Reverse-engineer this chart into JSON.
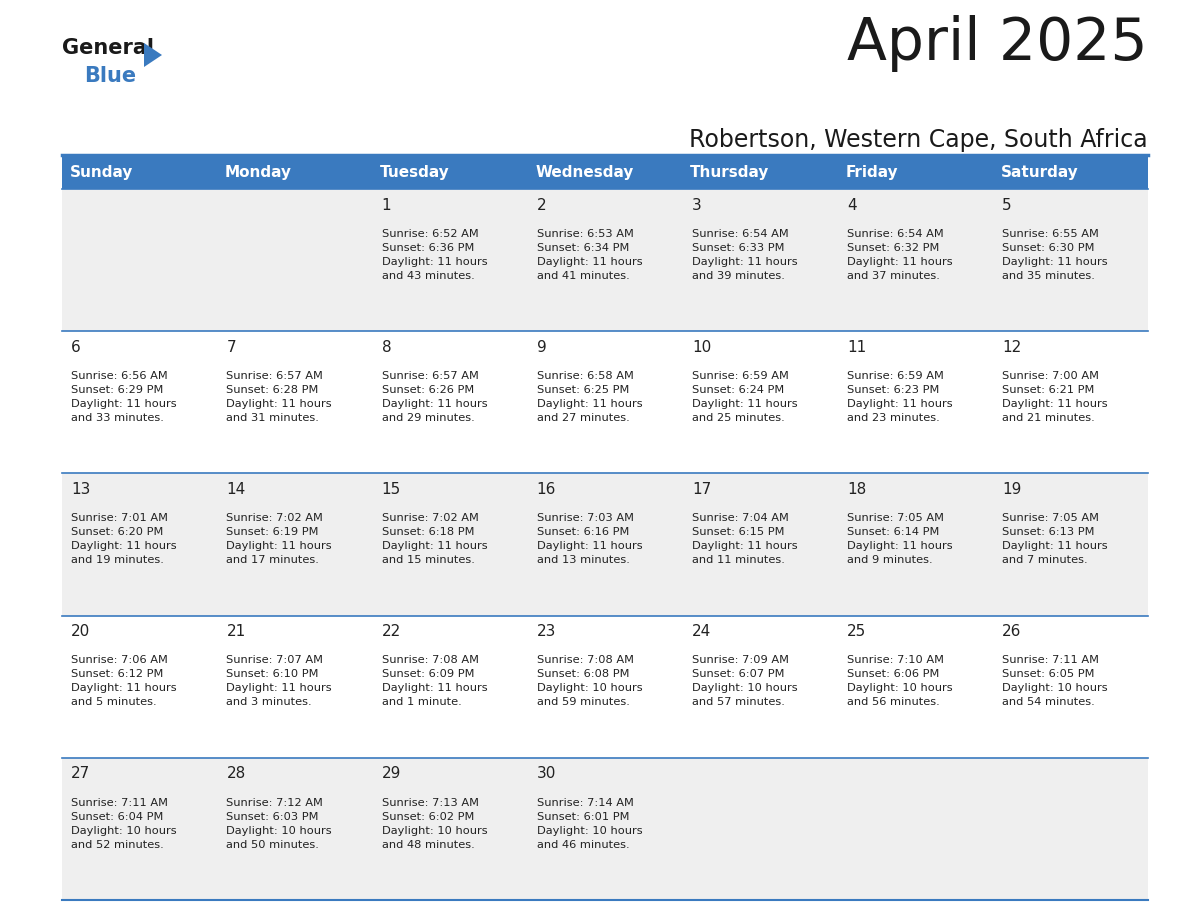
{
  "title": "April 2025",
  "subtitle": "Robertson, Western Cape, South Africa",
  "header_bg": "#3a7abf",
  "header_text_color": "#ffffff",
  "row_bg_odd": "#efefef",
  "row_bg_even": "#ffffff",
  "border_color": "#3a7abf",
  "text_color": "#222222",
  "days_of_week": [
    "Sunday",
    "Monday",
    "Tuesday",
    "Wednesday",
    "Thursday",
    "Friday",
    "Saturday"
  ],
  "weeks": [
    [
      {
        "day": null,
        "info": null
      },
      {
        "day": null,
        "info": null
      },
      {
        "day": 1,
        "info": "Sunrise: 6:52 AM\nSunset: 6:36 PM\nDaylight: 11 hours\nand 43 minutes."
      },
      {
        "day": 2,
        "info": "Sunrise: 6:53 AM\nSunset: 6:34 PM\nDaylight: 11 hours\nand 41 minutes."
      },
      {
        "day": 3,
        "info": "Sunrise: 6:54 AM\nSunset: 6:33 PM\nDaylight: 11 hours\nand 39 minutes."
      },
      {
        "day": 4,
        "info": "Sunrise: 6:54 AM\nSunset: 6:32 PM\nDaylight: 11 hours\nand 37 minutes."
      },
      {
        "day": 5,
        "info": "Sunrise: 6:55 AM\nSunset: 6:30 PM\nDaylight: 11 hours\nand 35 minutes."
      }
    ],
    [
      {
        "day": 6,
        "info": "Sunrise: 6:56 AM\nSunset: 6:29 PM\nDaylight: 11 hours\nand 33 minutes."
      },
      {
        "day": 7,
        "info": "Sunrise: 6:57 AM\nSunset: 6:28 PM\nDaylight: 11 hours\nand 31 minutes."
      },
      {
        "day": 8,
        "info": "Sunrise: 6:57 AM\nSunset: 6:26 PM\nDaylight: 11 hours\nand 29 minutes."
      },
      {
        "day": 9,
        "info": "Sunrise: 6:58 AM\nSunset: 6:25 PM\nDaylight: 11 hours\nand 27 minutes."
      },
      {
        "day": 10,
        "info": "Sunrise: 6:59 AM\nSunset: 6:24 PM\nDaylight: 11 hours\nand 25 minutes."
      },
      {
        "day": 11,
        "info": "Sunrise: 6:59 AM\nSunset: 6:23 PM\nDaylight: 11 hours\nand 23 minutes."
      },
      {
        "day": 12,
        "info": "Sunrise: 7:00 AM\nSunset: 6:21 PM\nDaylight: 11 hours\nand 21 minutes."
      }
    ],
    [
      {
        "day": 13,
        "info": "Sunrise: 7:01 AM\nSunset: 6:20 PM\nDaylight: 11 hours\nand 19 minutes."
      },
      {
        "day": 14,
        "info": "Sunrise: 7:02 AM\nSunset: 6:19 PM\nDaylight: 11 hours\nand 17 minutes."
      },
      {
        "day": 15,
        "info": "Sunrise: 7:02 AM\nSunset: 6:18 PM\nDaylight: 11 hours\nand 15 minutes."
      },
      {
        "day": 16,
        "info": "Sunrise: 7:03 AM\nSunset: 6:16 PM\nDaylight: 11 hours\nand 13 minutes."
      },
      {
        "day": 17,
        "info": "Sunrise: 7:04 AM\nSunset: 6:15 PM\nDaylight: 11 hours\nand 11 minutes."
      },
      {
        "day": 18,
        "info": "Sunrise: 7:05 AM\nSunset: 6:14 PM\nDaylight: 11 hours\nand 9 minutes."
      },
      {
        "day": 19,
        "info": "Sunrise: 7:05 AM\nSunset: 6:13 PM\nDaylight: 11 hours\nand 7 minutes."
      }
    ],
    [
      {
        "day": 20,
        "info": "Sunrise: 7:06 AM\nSunset: 6:12 PM\nDaylight: 11 hours\nand 5 minutes."
      },
      {
        "day": 21,
        "info": "Sunrise: 7:07 AM\nSunset: 6:10 PM\nDaylight: 11 hours\nand 3 minutes."
      },
      {
        "day": 22,
        "info": "Sunrise: 7:08 AM\nSunset: 6:09 PM\nDaylight: 11 hours\nand 1 minute."
      },
      {
        "day": 23,
        "info": "Sunrise: 7:08 AM\nSunset: 6:08 PM\nDaylight: 10 hours\nand 59 minutes."
      },
      {
        "day": 24,
        "info": "Sunrise: 7:09 AM\nSunset: 6:07 PM\nDaylight: 10 hours\nand 57 minutes."
      },
      {
        "day": 25,
        "info": "Sunrise: 7:10 AM\nSunset: 6:06 PM\nDaylight: 10 hours\nand 56 minutes."
      },
      {
        "day": 26,
        "info": "Sunrise: 7:11 AM\nSunset: 6:05 PM\nDaylight: 10 hours\nand 54 minutes."
      }
    ],
    [
      {
        "day": 27,
        "info": "Sunrise: 7:11 AM\nSunset: 6:04 PM\nDaylight: 10 hours\nand 52 minutes."
      },
      {
        "day": 28,
        "info": "Sunrise: 7:12 AM\nSunset: 6:03 PM\nDaylight: 10 hours\nand 50 minutes."
      },
      {
        "day": 29,
        "info": "Sunrise: 7:13 AM\nSunset: 6:02 PM\nDaylight: 10 hours\nand 48 minutes."
      },
      {
        "day": 30,
        "info": "Sunrise: 7:14 AM\nSunset: 6:01 PM\nDaylight: 10 hours\nand 46 minutes."
      },
      {
        "day": null,
        "info": null
      },
      {
        "day": null,
        "info": null
      },
      {
        "day": null,
        "info": null
      }
    ]
  ]
}
